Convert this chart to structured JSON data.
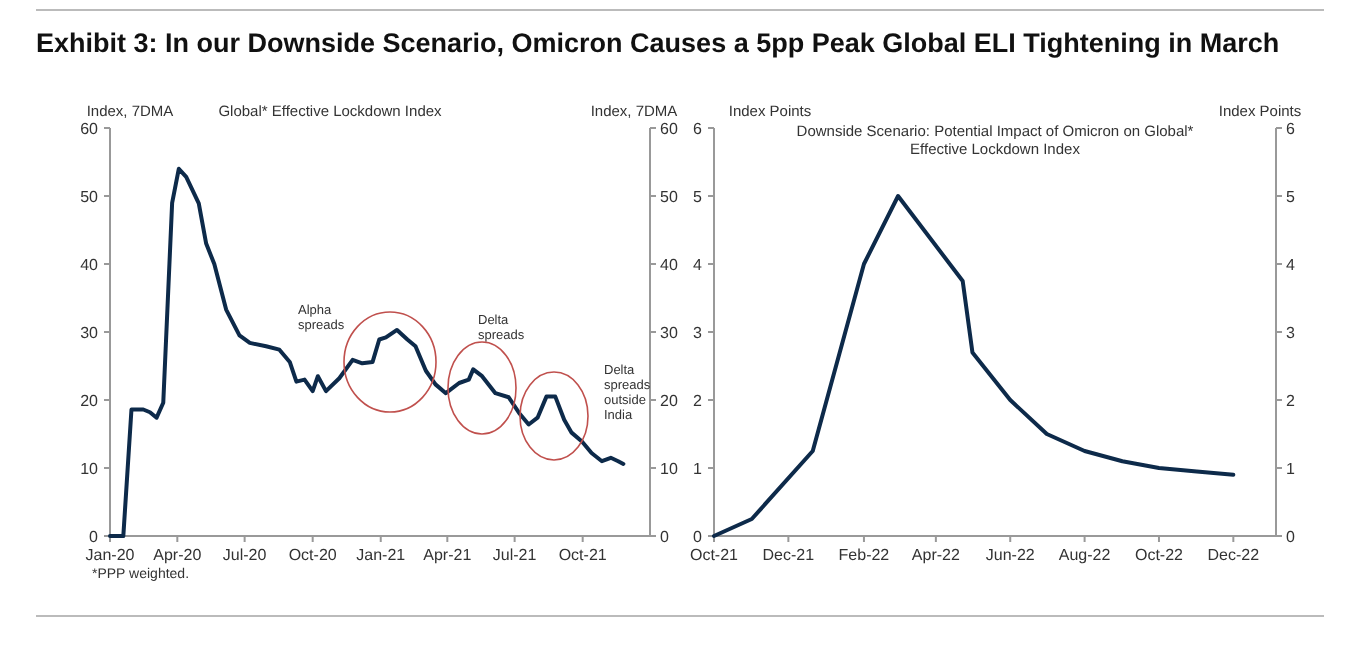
{
  "chart_data": [
    {
      "type": "line",
      "title": "Exhibit 3: In our Downside Scenario, Omicron Causes a 5pp Peak Global ELI Tightening in March",
      "subtitle": "Global* Effective Lockdown Index",
      "ylabel": "Index, 7DMA",
      "y2label": "Index, 7DMA",
      "x": [
        "2020-01-01",
        "2020-01-19",
        "2020-01-30",
        "2020-02-15",
        "2020-02-24",
        "2020-03-04",
        "2020-03-13",
        "2020-03-25",
        "2020-04-03",
        "2020-04-13",
        "2020-04-30",
        "2020-05-10",
        "2020-05-21",
        "2020-06-06",
        "2020-06-24",
        "2020-07-08",
        "2020-07-30",
        "2020-08-17",
        "2020-08-31",
        "2020-09-09",
        "2020-09-20",
        "2020-10-01",
        "2020-10-08",
        "2020-10-19",
        "2020-11-06",
        "2020-11-24",
        "2020-12-07",
        "2020-12-21",
        "2020-12-30",
        "2021-01-08",
        "2021-01-23",
        "2021-02-06",
        "2021-02-17",
        "2021-03-03",
        "2021-03-16",
        "2021-03-30",
        "2021-04-17",
        "2021-04-30",
        "2021-05-06",
        "2021-05-18",
        "2021-06-05",
        "2021-06-23",
        "2021-07-07",
        "2021-07-20",
        "2021-08-01",
        "2021-08-13",
        "2021-08-25",
        "2021-09-06",
        "2021-09-16",
        "2021-09-30",
        "2021-10-13",
        "2021-10-27",
        "2021-11-08",
        "2021-11-18",
        "2021-11-25"
      ],
      "series": [
        {
          "color": "#0d2a4a",
          "values": [
            0,
            0,
            18.6,
            18.6,
            18.2,
            17.4,
            19.6,
            49,
            54,
            52.8,
            48.9,
            43,
            40,
            33.3,
            29.5,
            28.4,
            27.9,
            27.4,
            25.6,
            22.7,
            23,
            21.3,
            23.5,
            21.3,
            23.2,
            25.9,
            25.4,
            25.6,
            28.9,
            29.2,
            30.3,
            28.9,
            27.9,
            24.3,
            22.3,
            21,
            22.5,
            23,
            24.5,
            23.5,
            21,
            20.4,
            18.1,
            16.4,
            17.4,
            20.5,
            20.5,
            17.1,
            15.2,
            13.9,
            12.2,
            11,
            11.5,
            11,
            10.6
          ]
        }
      ],
      "xlim": [
        "2020-01-01",
        "2021-12-31"
      ],
      "xticks": [
        {
          "value": "2020-01-01",
          "label": "Jan-20"
        },
        {
          "value": "2020-04-01",
          "label": "Apr-20"
        },
        {
          "value": "2020-07-01",
          "label": "Jul-20"
        },
        {
          "value": "2020-10-01",
          "label": "Oct-20"
        },
        {
          "value": "2021-01-01",
          "label": "Jan-21"
        },
        {
          "value": "2021-04-01",
          "label": "Apr-21"
        },
        {
          "value": "2021-07-01",
          "label": "Jul-21"
        },
        {
          "value": "2021-10-01",
          "label": "Oct-21"
        }
      ],
      "ylim": [
        0,
        60
      ],
      "yticks": [
        0,
        10,
        20,
        30,
        40,
        50,
        60
      ],
      "y2lim": [
        0,
        60
      ],
      "y2ticks": [
        0,
        10,
        20,
        30,
        40,
        50,
        60
      ],
      "annotations": [
        "Alpha spreads",
        "Delta spreads",
        "Delta spreads outside India",
        "*PPP weighted."
      ],
      "grid": false
    },
    {
      "type": "line",
      "subtitle": "Downside Scenario: Potential Impact of Omicron on Global* Effective Lockdown Index",
      "ylabel": "Index Points",
      "y2label": "Index Points",
      "x": [
        "2021-10-01",
        "2021-11-01",
        "2021-12-21",
        "2022-02-01",
        "2022-03-01",
        "2022-04-23",
        "2022-05-01",
        "2022-06-01",
        "2022-07-01",
        "2022-08-01",
        "2022-09-01",
        "2022-10-01",
        "2022-11-01",
        "2022-12-01"
      ],
      "series": [
        {
          "color": "#0d2a4a",
          "values": [
            0,
            0.25,
            1.25,
            4,
            5,
            3.75,
            2.7,
            2,
            1.5,
            1.25,
            1.1,
            1,
            0.95,
            0.9
          ]
        }
      ],
      "xlim": [
        "2021-10-01",
        "2023-01-05"
      ],
      "xticks": [
        {
          "value": "2021-10-01",
          "label": "Oct-21"
        },
        {
          "value": "2021-12-01",
          "label": "Dec-21"
        },
        {
          "value": "2022-02-01",
          "label": "Feb-22"
        },
        {
          "value": "2022-04-01",
          "label": "Apr-22"
        },
        {
          "value": "2022-06-01",
          "label": "Jun-22"
        },
        {
          "value": "2022-08-01",
          "label": "Aug-22"
        },
        {
          "value": "2022-10-01",
          "label": "Oct-22"
        },
        {
          "value": "2022-12-01",
          "label": "Dec-22"
        }
      ],
      "ylim": [
        0,
        6
      ],
      "yticks": [
        0,
        1,
        2,
        3,
        4,
        5,
        6
      ],
      "y2lim": [
        0,
        6
      ],
      "y2ticks": [
        0,
        1,
        2,
        3,
        4,
        5,
        6
      ],
      "grid": false
    }
  ]
}
